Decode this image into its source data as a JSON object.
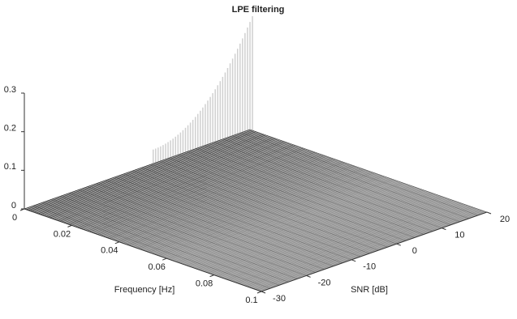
{
  "chart_data": {
    "type": "surface",
    "title": "LPE filtering",
    "xlabel": "Frequency [Hz]",
    "ylabel": "SNR [dB]",
    "xlim": [
      0,
      0.1
    ],
    "xticks": [
      0,
      0.02,
      0.04,
      0.06,
      0.08,
      0.1
    ],
    "ylim": [
      -30,
      20
    ],
    "yticks": [
      -30,
      -20,
      -10,
      0,
      10,
      20
    ],
    "zlim": [
      0,
      0.3
    ],
    "zticks": [
      0,
      0.1,
      0.2,
      0.3
    ],
    "color": "#b0b0b0"
  }
}
